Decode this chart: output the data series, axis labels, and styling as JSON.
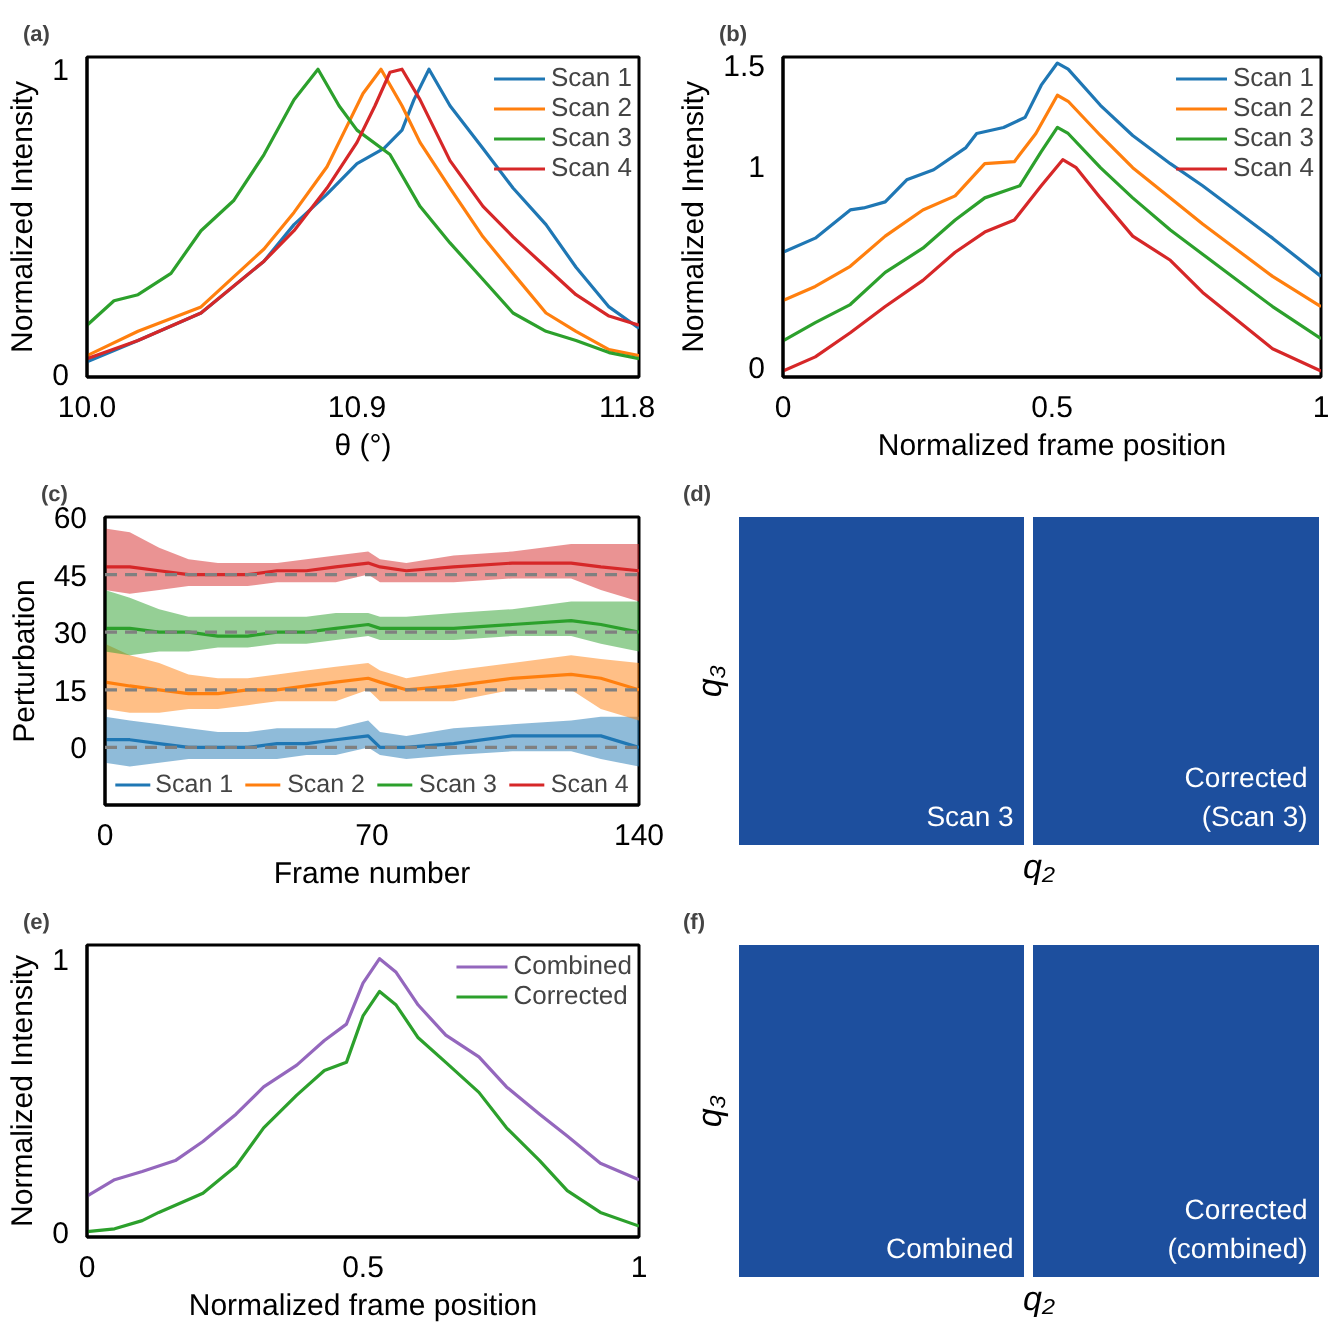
{
  "chart_data": [
    {
      "type": "line",
      "title": "(a)",
      "xlabel": "θ (°)",
      "ylabel": "Normalized Intensity",
      "xlim": [
        10.0,
        11.84
      ],
      "ylim": [
        -0.01,
        1.04
      ],
      "xticks": [
        {
          "value": 10,
          "label": "10.0"
        },
        10.9,
        11.8
      ],
      "yticks": [
        0,
        1
      ],
      "legend": "top right",
      "series": [
        {
          "name": "Scan 1",
          "color": "#1f77b4",
          "x": [
            10.0,
            10.17,
            10.38,
            10.59,
            10.69,
            10.8,
            10.9,
            10.99,
            11.05,
            11.09,
            11.14,
            11.21,
            11.32,
            11.42,
            11.53,
            11.63,
            11.74,
            11.84
          ],
          "values": [
            0.04,
            0.11,
            0.2,
            0.37,
            0.49,
            0.59,
            0.69,
            0.74,
            0.8,
            0.9,
            1.0,
            0.88,
            0.74,
            0.61,
            0.49,
            0.35,
            0.22,
            0.15
          ]
        },
        {
          "name": "Scan 2",
          "color": "#ff7f0e",
          "x": [
            10.0,
            10.17,
            10.38,
            10.59,
            10.69,
            10.8,
            10.86,
            10.92,
            10.98,
            11.05,
            11.11,
            11.21,
            11.32,
            11.42,
            11.53,
            11.63,
            11.74,
            11.84
          ],
          "values": [
            0.06,
            0.14,
            0.22,
            0.41,
            0.53,
            0.68,
            0.8,
            0.92,
            1.0,
            0.88,
            0.76,
            0.61,
            0.45,
            0.33,
            0.2,
            0.14,
            0.08,
            0.06
          ]
        },
        {
          "name": "Scan 3",
          "color": "#2ca02c",
          "x": [
            10.0,
            10.09,
            10.17,
            10.28,
            10.38,
            10.49,
            10.59,
            10.69,
            10.77,
            10.84,
            10.9,
            11.01,
            11.11,
            11.21,
            11.32,
            11.42,
            11.53,
            11.63,
            11.74,
            11.84
          ],
          "values": [
            0.16,
            0.24,
            0.26,
            0.33,
            0.47,
            0.57,
            0.72,
            0.9,
            1.0,
            0.88,
            0.8,
            0.72,
            0.55,
            0.43,
            0.31,
            0.2,
            0.14,
            0.11,
            0.07,
            0.05
          ]
        },
        {
          "name": "Scan 4",
          "color": "#d62728",
          "x": [
            10.0,
            10.17,
            10.38,
            10.59,
            10.69,
            10.8,
            10.9,
            10.96,
            11.01,
            11.05,
            11.11,
            11.21,
            11.32,
            11.42,
            11.53,
            11.63,
            11.74,
            11.84
          ],
          "values": [
            0.05,
            0.11,
            0.2,
            0.37,
            0.47,
            0.61,
            0.76,
            0.88,
            0.99,
            1.0,
            0.9,
            0.7,
            0.55,
            0.45,
            0.35,
            0.26,
            0.19,
            0.16
          ]
        }
      ]
    },
    {
      "type": "line",
      "title": "(b)",
      "xlabel": "Normalized frame position",
      "ylabel": "Normalized Intensity",
      "xlim": [
        0,
        1
      ],
      "ylim": [
        -0.05,
        1.54
      ],
      "xticks": [
        0,
        0.5,
        1
      ],
      "yticks": [
        0,
        1,
        1.5
      ],
      "legend": "top right",
      "series": [
        {
          "name": "Scan 1",
          "color": "#1f77b4",
          "x": [
            0,
            0.06,
            0.125,
            0.15,
            0.19,
            0.23,
            0.28,
            0.34,
            0.36,
            0.41,
            0.45,
            0.48,
            0.51,
            0.53,
            0.59,
            0.65,
            0.72,
            0.78,
            0.85,
            0.91,
            1.0
          ],
          "values": [
            0.57,
            0.64,
            0.78,
            0.79,
            0.82,
            0.93,
            0.98,
            1.09,
            1.16,
            1.19,
            1.24,
            1.4,
            1.51,
            1.48,
            1.3,
            1.15,
            1.01,
            0.9,
            0.76,
            0.64,
            0.45
          ]
        },
        {
          "name": "Scan 2",
          "color": "#ff7f0e",
          "x": [
            0,
            0.06,
            0.125,
            0.19,
            0.26,
            0.32,
            0.375,
            0.43,
            0.47,
            0.51,
            0.53,
            0.59,
            0.65,
            0.72,
            0.78,
            0.85,
            0.91,
            1.0
          ],
          "values": [
            0.33,
            0.4,
            0.5,
            0.65,
            0.78,
            0.85,
            1.01,
            1.02,
            1.16,
            1.35,
            1.32,
            1.15,
            0.99,
            0.84,
            0.71,
            0.57,
            0.45,
            0.3
          ]
        },
        {
          "name": "Scan 3",
          "color": "#2ca02c",
          "x": [
            0,
            0.06,
            0.125,
            0.19,
            0.26,
            0.32,
            0.375,
            0.44,
            0.48,
            0.51,
            0.53,
            0.59,
            0.65,
            0.72,
            0.78,
            0.85,
            0.91,
            1.0
          ],
          "values": [
            0.13,
            0.22,
            0.31,
            0.47,
            0.59,
            0.73,
            0.84,
            0.9,
            1.07,
            1.19,
            1.16,
            0.99,
            0.84,
            0.68,
            0.56,
            0.42,
            0.3,
            0.14
          ]
        },
        {
          "name": "Scan 4",
          "color": "#d62728",
          "x": [
            0,
            0.06,
            0.125,
            0.19,
            0.26,
            0.32,
            0.375,
            0.43,
            0.48,
            0.52,
            0.545,
            0.59,
            0.65,
            0.72,
            0.78,
            0.85,
            0.91,
            1.0
          ],
          "values": [
            -0.02,
            0.05,
            0.17,
            0.3,
            0.43,
            0.57,
            0.67,
            0.73,
            0.9,
            1.03,
            0.99,
            0.84,
            0.65,
            0.53,
            0.37,
            0.22,
            0.09,
            -0.02
          ]
        }
      ]
    },
    {
      "type": "line",
      "title": "(c)",
      "xlabel": "Frame number",
      "ylabel": "Perturbation",
      "xlim": [
        0,
        140
      ],
      "ylim": [
        -15,
        60
      ],
      "xticks": [
        0,
        70,
        140
      ],
      "yticks": [
        0,
        15,
        30,
        45,
        60
      ],
      "legend": "bottom",
      "x": [
        0,
        6.5,
        14.2,
        21.9,
        29.6,
        37.4,
        45.1,
        52.8,
        60.5,
        69,
        72.1,
        79,
        91.4,
        106.8,
        122.2,
        130,
        140
      ],
      "ref_lines": [
        {
          "axis": "y",
          "value": 0,
          "color": "#808080",
          "line_style": "dashed"
        },
        {
          "axis": "y",
          "value": 15,
          "color": "#808080",
          "line_style": "dashed"
        },
        {
          "axis": "y",
          "value": 30,
          "color": "#808080",
          "line_style": "dashed"
        },
        {
          "axis": "y",
          "value": 45,
          "color": "#808080",
          "line_style": "dashed"
        }
      ],
      "series": [
        {
          "name": "Scan 1",
          "color": "#1f77b4",
          "values": [
            2,
            2,
            1,
            0,
            0,
            0,
            1,
            1,
            2,
            3,
            0,
            0,
            1,
            3,
            3,
            3,
            0
          ],
          "lower": [
            -4,
            -5,
            -4,
            -3,
            -3,
            -3,
            -3,
            -2,
            -2,
            0,
            -2,
            -3,
            -2,
            -1,
            -1,
            -3,
            -5
          ],
          "upper": [
            8,
            7,
            6,
            5,
            4,
            4,
            5,
            5,
            5,
            7,
            4,
            3,
            5,
            6,
            7,
            8,
            8
          ]
        },
        {
          "name": "Scan 2",
          "color": "#ff7f0e",
          "values": [
            17,
            16,
            15,
            14,
            14,
            15,
            15,
            16,
            17,
            18,
            17,
            15,
            16,
            18,
            19,
            18,
            15
          ],
          "lower": [
            10,
            9,
            9,
            10,
            10,
            11,
            12,
            12,
            12,
            15,
            12,
            12,
            12,
            15,
            15,
            10,
            7
          ],
          "upper": [
            27,
            24,
            22,
            19,
            18,
            18,
            19,
            20,
            21,
            22,
            20,
            18,
            20,
            22,
            24,
            23,
            22
          ]
        },
        {
          "name": "Scan 3",
          "color": "#2ca02c",
          "values": [
            31,
            31,
            30,
            30,
            29,
            29,
            30,
            30,
            31,
            32,
            31,
            31,
            31,
            32,
            33,
            32,
            30
          ],
          "lower": [
            25,
            24,
            25,
            25,
            26,
            26,
            27,
            27,
            28,
            29,
            28,
            28,
            28,
            29,
            29,
            27,
            25
          ],
          "upper": [
            41,
            39,
            36,
            34,
            34,
            34,
            34,
            34,
            35,
            35,
            34,
            34,
            35,
            36,
            38,
            38,
            38
          ]
        },
        {
          "name": "Scan 4",
          "color": "#d62728",
          "values": [
            47,
            47,
            46,
            45,
            45,
            45,
            46,
            46,
            47,
            48,
            47,
            46,
            47,
            48,
            48,
            47,
            46
          ],
          "lower": [
            41,
            40,
            41,
            42,
            42,
            42,
            43,
            43,
            43,
            45,
            43,
            43,
            43,
            44,
            44,
            41,
            38
          ],
          "upper": [
            57,
            56,
            52,
            49,
            48,
            48,
            48,
            49,
            50,
            51,
            49,
            48,
            50,
            51,
            53,
            53,
            53
          ]
        }
      ]
    },
    {
      "type": "other",
      "title": "(d)",
      "xlabel": "q₂",
      "ylabel": "q₃",
      "annotations": [
        "Scan 3",
        "Corrected\n(Scan 3)"
      ]
    },
    {
      "type": "line",
      "title": "(e)",
      "xlabel": "Normalized frame position",
      "ylabel": "Normalized Intensity",
      "xlim": [
        0,
        1
      ],
      "ylim": [
        -0.02,
        1.05
      ],
      "xticks": [
        0,
        0.5,
        1
      ],
      "yticks": [
        0,
        1
      ],
      "legend": "top right",
      "series": [
        {
          "name": "Combined",
          "color": "#9467bd",
          "x": [
            0,
            0.05,
            0.1,
            0.16,
            0.21,
            0.27,
            0.32,
            0.38,
            0.43,
            0.47,
            0.5,
            0.53,
            0.56,
            0.6,
            0.65,
            0.71,
            0.76,
            0.82,
            0.87,
            0.93,
            1.0
          ],
          "values": [
            0.13,
            0.19,
            0.22,
            0.26,
            0.33,
            0.43,
            0.53,
            0.61,
            0.7,
            0.76,
            0.91,
            1.0,
            0.95,
            0.83,
            0.72,
            0.64,
            0.53,
            0.43,
            0.35,
            0.25,
            0.19
          ]
        },
        {
          "name": "Corrected",
          "color": "#2ca02c",
          "x": [
            0,
            0.05,
            0.1,
            0.13,
            0.21,
            0.27,
            0.32,
            0.38,
            0.43,
            0.47,
            0.5,
            0.53,
            0.56,
            0.6,
            0.65,
            0.71,
            0.76,
            0.82,
            0.87,
            0.93,
            1.0
          ],
          "values": [
            0,
            0.01,
            0.04,
            0.07,
            0.14,
            0.24,
            0.38,
            0.5,
            0.59,
            0.62,
            0.79,
            0.88,
            0.83,
            0.71,
            0.62,
            0.51,
            0.38,
            0.26,
            0.15,
            0.07,
            0.02
          ]
        }
      ]
    },
    {
      "type": "other",
      "title": "(f)",
      "xlabel": "q₂",
      "ylabel": "q₃",
      "annotations": [
        "Combined",
        "Corrected\n(combined)"
      ]
    }
  ]
}
